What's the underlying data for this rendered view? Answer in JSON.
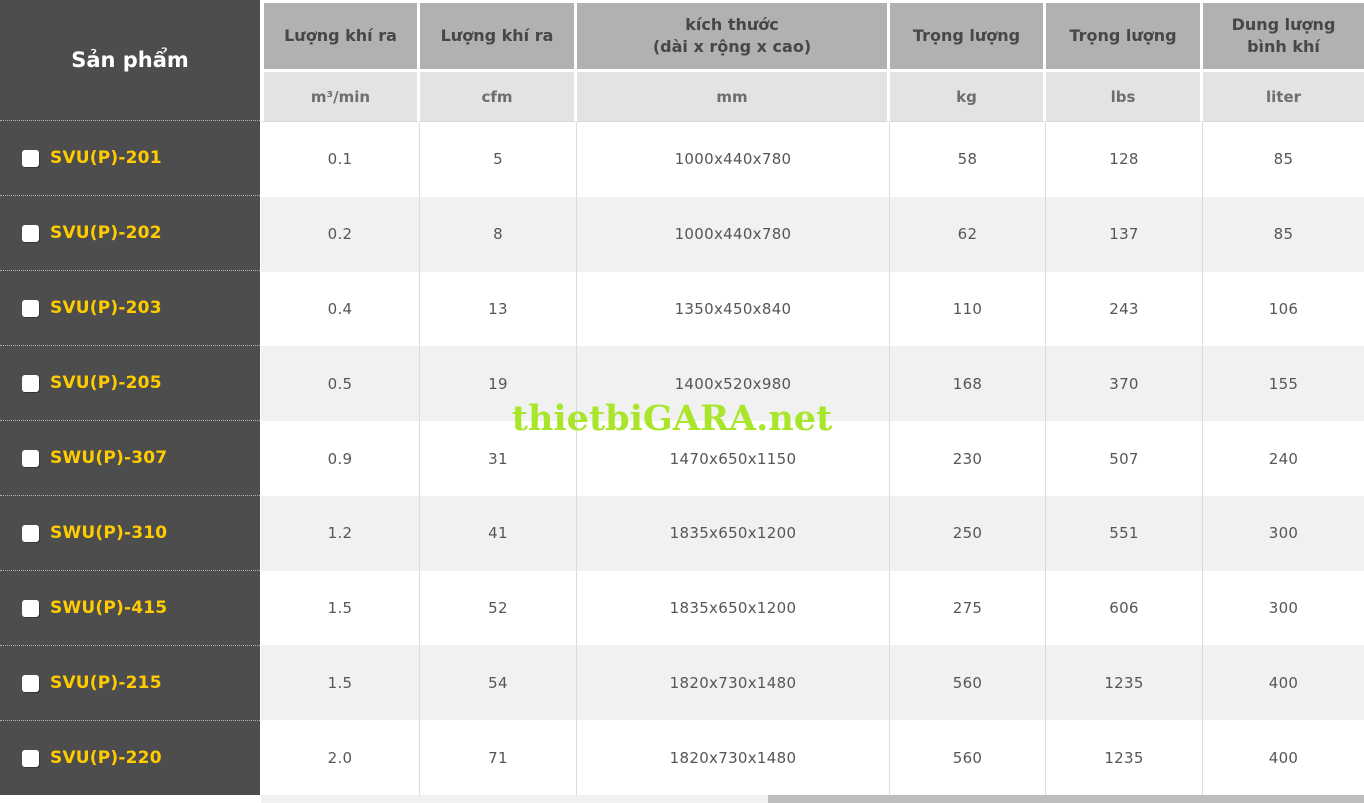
{
  "sidebar": {
    "header": "Sản phẩm",
    "products": [
      "SVU(P)-201",
      "SVU(P)-202",
      "SVU(P)-203",
      "SVU(P)-205",
      "SWU(P)-307",
      "SWU(P)-310",
      "SWU(P)-415",
      "SVU(P)-215",
      "SVU(P)-220"
    ]
  },
  "table": {
    "columns": [
      {
        "title": "Lượng khí ra",
        "title2": "",
        "unit": "m³/min"
      },
      {
        "title": "Lượng khí ra",
        "title2": "",
        "unit": "cfm"
      },
      {
        "title": "kích thước",
        "title2": "(dài x rộng x cao)",
        "unit": "mm"
      },
      {
        "title": "Trọng lượng",
        "title2": "",
        "unit": "kg"
      },
      {
        "title": "Trọng lượng",
        "title2": "",
        "unit": "lbs"
      },
      {
        "title": "Dung lượng",
        "title2": "bình khí",
        "unit": "liter"
      }
    ],
    "rows": [
      {
        "m3min": "0.1",
        "cfm": "5",
        "size": "1000x440x780",
        "kg": "58",
        "lbs": "128",
        "liter": "85"
      },
      {
        "m3min": "0.2",
        "cfm": "8",
        "size": "1000x440x780",
        "kg": "62",
        "lbs": "137",
        "liter": "85"
      },
      {
        "m3min": "0.4",
        "cfm": "13",
        "size": "1350x450x840",
        "kg": "110",
        "lbs": "243",
        "liter": "106"
      },
      {
        "m3min": "0.5",
        "cfm": "19",
        "size": "1400x520x980",
        "kg": "168",
        "lbs": "370",
        "liter": "155"
      },
      {
        "m3min": "0.9",
        "cfm": "31",
        "size": "1470x650x1150",
        "kg": "230",
        "lbs": "507",
        "liter": "240"
      },
      {
        "m3min": "1.2",
        "cfm": "41",
        "size": "1835x650x1200",
        "kg": "250",
        "lbs": "551",
        "liter": "300"
      },
      {
        "m3min": "1.5",
        "cfm": "52",
        "size": "1835x650x1200",
        "kg": "275",
        "lbs": "606",
        "liter": "300"
      },
      {
        "m3min": "1.5",
        "cfm": "54",
        "size": "1820x730x1480",
        "kg": "560",
        "lbs": "1235",
        "liter": "400"
      },
      {
        "m3min": "2.0",
        "cfm": "71",
        "size": "1820x730x1480",
        "kg": "560",
        "lbs": "1235",
        "liter": "400"
      }
    ]
  },
  "watermark": "thietbiGARA.net",
  "colors": {
    "sidebar_bg": "#4d4d4d",
    "product_text": "#ffcc00",
    "header_bg": "#b1b1b1",
    "subheader_bg": "#e3e3e3",
    "alt_row_bg": "#f1f1f1",
    "watermark_green": "#a9e62b",
    "scroll_thumb": "#bdbdbd"
  }
}
